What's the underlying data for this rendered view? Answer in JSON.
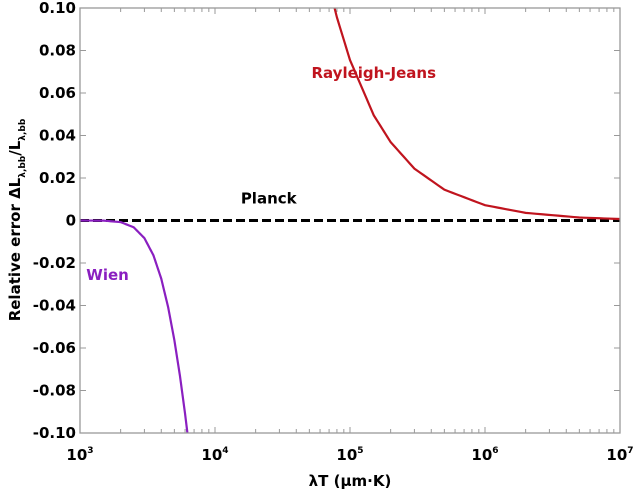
{
  "chart_data": {
    "type": "line",
    "title": "",
    "xlabel": "λT (µm·K)",
    "ylabel": {
      "main": "Relative error  ΔL",
      "sub1": "λ,bb",
      "mid": "/L",
      "sub2": "λ,bb"
    },
    "xscale": "log",
    "xlim": [
      1000,
      10000000
    ],
    "ylim": [
      -0.1,
      0.1
    ],
    "x_ticks": [
      {
        "base": "10",
        "exp": "3",
        "value": 1000
      },
      {
        "base": "10",
        "exp": "4",
        "value": 10000
      },
      {
        "base": "10",
        "exp": "5",
        "value": 100000
      },
      {
        "base": "10",
        "exp": "6",
        "value": 1000000
      },
      {
        "base": "10",
        "exp": "7",
        "value": 10000000
      }
    ],
    "y_ticks": [
      {
        "label": "0.10",
        "value": 0.1
      },
      {
        "label": "0.08",
        "value": 0.08
      },
      {
        "label": "0.06",
        "value": 0.06
      },
      {
        "label": "0.04",
        "value": 0.04
      },
      {
        "label": "0.02",
        "value": 0.02
      },
      {
        "label": "0",
        "value": 0
      },
      {
        "label": "-0.02",
        "value": -0.02
      },
      {
        "label": "-0.04",
        "value": -0.04
      },
      {
        "label": "-0.06",
        "value": -0.06
      },
      {
        "label": "-0.08",
        "value": -0.08
      },
      {
        "label": "-0.10",
        "value": -0.1
      }
    ],
    "grid": false,
    "series": [
      {
        "name": "Planck",
        "color": "#000000",
        "dash": true,
        "label_pos": [
          25000,
          0.008
        ],
        "x": [
          1000,
          10000000
        ],
        "y": [
          0,
          0
        ]
      },
      {
        "name": "Rayleigh-Jeans",
        "color": "#c0141e",
        "dash": false,
        "label_pos": [
          150000,
          0.067
        ],
        "x": [
          70000,
          80000,
          100000,
          150000,
          200000,
          300000,
          500000,
          1000000,
          2000000,
          5000000,
          10000000
        ],
        "y": [
          0.1102,
          0.0956,
          0.0755,
          0.0495,
          0.0369,
          0.0244,
          0.0145,
          0.0072,
          0.0036,
          0.0014,
          0.0007
        ]
      },
      {
        "name": "Wien",
        "color": "#8a1fc0",
        "dash": false,
        "label_pos": [
          1600,
          -0.028
        ],
        "x": [
          1000,
          1500,
          2000,
          2500,
          3000,
          3500,
          4000,
          4500,
          5000,
          5500,
          6000,
          6300
        ],
        "y": [
          0,
          -7e-05,
          -0.00075,
          -0.0032,
          -0.0083,
          -0.0164,
          -0.0274,
          -0.0409,
          -0.0563,
          -0.0731,
          -0.0909,
          -0.1019
        ]
      }
    ]
  }
}
